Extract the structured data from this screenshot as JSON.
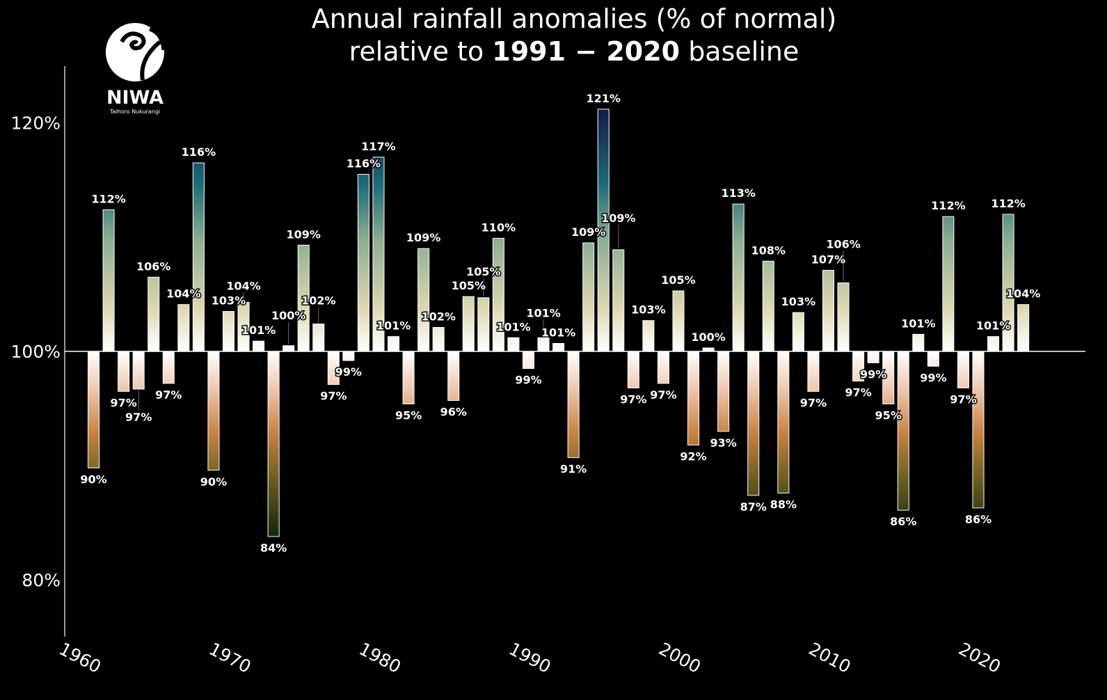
{
  "chart_data": {
    "type": "bar",
    "title_line1": "Annual rainfall anomalies (% of normal)",
    "title_line2_prefix": "relative to ",
    "title_line2_bold": "1991 − 2020",
    "title_line2_suffix": " baseline",
    "xlabel": "",
    "ylabel": "",
    "baseline": 100,
    "ylim": [
      75,
      125
    ],
    "xlim": [
      1960,
      2027
    ],
    "yticks": [
      {
        "value": 80,
        "label": "80%"
      },
      {
        "value": 100,
        "label": "100%"
      },
      {
        "value": 120,
        "label": "120%"
      }
    ],
    "xticks": [
      {
        "value": 1960,
        "label": "1960"
      },
      {
        "value": 1970,
        "label": "1970"
      },
      {
        "value": 1980,
        "label": "1980"
      },
      {
        "value": 1990,
        "label": "1990"
      },
      {
        "value": 2000,
        "label": "2000"
      },
      {
        "value": 2010,
        "label": "2010"
      },
      {
        "value": 2020,
        "label": "2020"
      }
    ],
    "grid": false,
    "years": [
      1961,
      1962,
      1963,
      1964,
      1965,
      1966,
      1967,
      1968,
      1969,
      1970,
      1971,
      1972,
      1973,
      1974,
      1975,
      1976,
      1977,
      1978,
      1979,
      1980,
      1981,
      1982,
      1983,
      1984,
      1985,
      1986,
      1987,
      1988,
      1989,
      1990,
      1991,
      1992,
      1993,
      1994,
      1995,
      1996,
      1997,
      1998,
      1999,
      2000,
      2001,
      2002,
      2003,
      2004,
      2005,
      2006,
      2007,
      2008,
      2009,
      2010,
      2011,
      2012,
      2013,
      2014,
      2015,
      2016,
      2017,
      2018,
      2019,
      2020,
      2021,
      2022,
      2023
    ],
    "values": [
      89.8,
      112.4,
      96.5,
      96.7,
      106.5,
      97.2,
      104.1,
      116.5,
      89.6,
      103.5,
      104.3,
      100.9,
      83.8,
      100.5,
      109.3,
      102.4,
      97.1,
      99.2,
      115.5,
      117.0,
      101.3,
      95.4,
      109.0,
      102.1,
      95.7,
      104.8,
      104.7,
      109.9,
      101.2,
      98.5,
      101.2,
      100.7,
      90.7,
      109.5,
      121.2,
      108.9,
      96.8,
      102.7,
      97.2,
      105.3,
      91.8,
      100.3,
      93.0,
      112.9,
      87.4,
      107.9,
      87.6,
      103.4,
      96.5,
      107.1,
      106.0,
      97.4,
      99.0,
      95.4,
      86.1,
      101.5,
      98.7,
      111.8,
      96.8,
      86.3,
      101.3,
      112.0,
      104.1
    ],
    "labels": [
      "90%",
      "112%",
      "97%",
      "97%",
      "106%",
      "97%",
      "104%",
      "116%",
      "90%",
      "103%",
      "104%",
      "101%",
      "84%",
      "100%",
      "109%",
      "102%",
      "97%",
      "99%",
      "116%",
      "117%",
      "101%",
      "95%",
      "109%",
      "102%",
      "96%",
      "105%",
      "105%",
      "110%",
      "101%",
      "99%",
      "101%",
      "101%",
      "91%",
      "109%",
      "121%",
      "109%",
      "97%",
      "103%",
      "97%",
      "105%",
      "92%",
      "100%",
      "93%",
      "113%",
      "87%",
      "108%",
      "88%",
      "103%",
      "97%",
      "107%",
      "106%",
      "97%",
      "99%",
      "95%",
      "86%",
      "101%",
      "99%",
      "112%",
      "97%",
      "86%",
      "101%",
      "112%",
      "104%"
    ],
    "colors": {
      "wet_max": "#101848",
      "wet_mid": "#1b6c78",
      "wet_low": "#dcd7ae",
      "neutral": "#ffffff",
      "dry_low": "#f0c9b0",
      "dry_mid": "#c8813f",
      "dry_max": "#16280a"
    }
  },
  "logo": {
    "name": "NIWA",
    "tagline": "Taihoro Nukurangi"
  }
}
